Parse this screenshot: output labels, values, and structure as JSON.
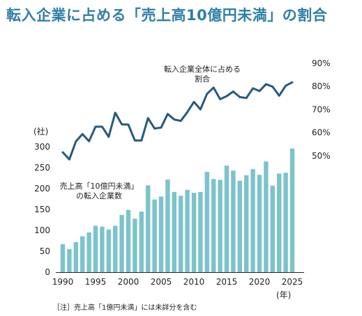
{
  "title": "転入企業に占める「売上高10億円未満」の割合",
  "note": "［注］売上高「1億円未満」には未詳分を含む",
  "colors": {
    "title": "#2e7fa8",
    "bar": "#7cc3cc",
    "line": "#255a80",
    "axis": "#222222"
  },
  "chart_data": {
    "type": "bar+line",
    "x": [
      1990,
      1991,
      1992,
      1993,
      1994,
      1995,
      1996,
      1997,
      1998,
      1999,
      2000,
      2001,
      2002,
      2003,
      2004,
      2005,
      2006,
      2007,
      2008,
      2009,
      2010,
      2011,
      2012,
      2013,
      2014,
      2015,
      2016,
      2017,
      2018,
      2019,
      2020,
      2021,
      2022,
      2023,
      2024,
      2025
    ],
    "x_ticks": [
      "1990",
      "1995",
      "2000",
      "2005",
      "2010",
      "2015",
      "2020",
      "2025"
    ],
    "x_unit": "(年)",
    "bars": {
      "name": "売上高「10億円未満」の転入企業数",
      "name_lines": [
        "売上高「10億円未満」",
        "の転入企業数"
      ],
      "unit": "(社)",
      "ylim": [
        0,
        300
      ],
      "y_ticks": [
        "0",
        "50",
        "100",
        "150",
        "200",
        "250",
        "300"
      ],
      "values": [
        67,
        55,
        72,
        86,
        95,
        111,
        109,
        102,
        111,
        137,
        149,
        128,
        145,
        208,
        174,
        181,
        222,
        192,
        183,
        197,
        190,
        192,
        240,
        223,
        221,
        255,
        243,
        219,
        232,
        247,
        233,
        265,
        207,
        236,
        238,
        296
      ]
    },
    "line": {
      "name": "転入企業全体に占める割合",
      "name_lines": [
        "転入企業全体に占める",
        "割合"
      ],
      "ylim": [
        40,
        90
      ],
      "y_ticks": [
        "50%",
        "60%",
        "70%",
        "80%",
        "90%"
      ],
      "values": [
        51.5,
        48.4,
        56.2,
        59.4,
        56.3,
        62.6,
        62.6,
        58.2,
        68.6,
        63.6,
        63.5,
        56.6,
        56.6,
        66.3,
        61.8,
        62.2,
        68.1,
        65.7,
        65.1,
        68.9,
        73.3,
        70.1,
        76.8,
        79.5,
        74.5,
        75.8,
        77.8,
        75.4,
        75.0,
        79.2,
        78.0,
        81.0,
        79.9,
        76.0,
        80.3,
        81.8
      ]
    },
    "grid": false,
    "legend": "none (direct labels)"
  }
}
